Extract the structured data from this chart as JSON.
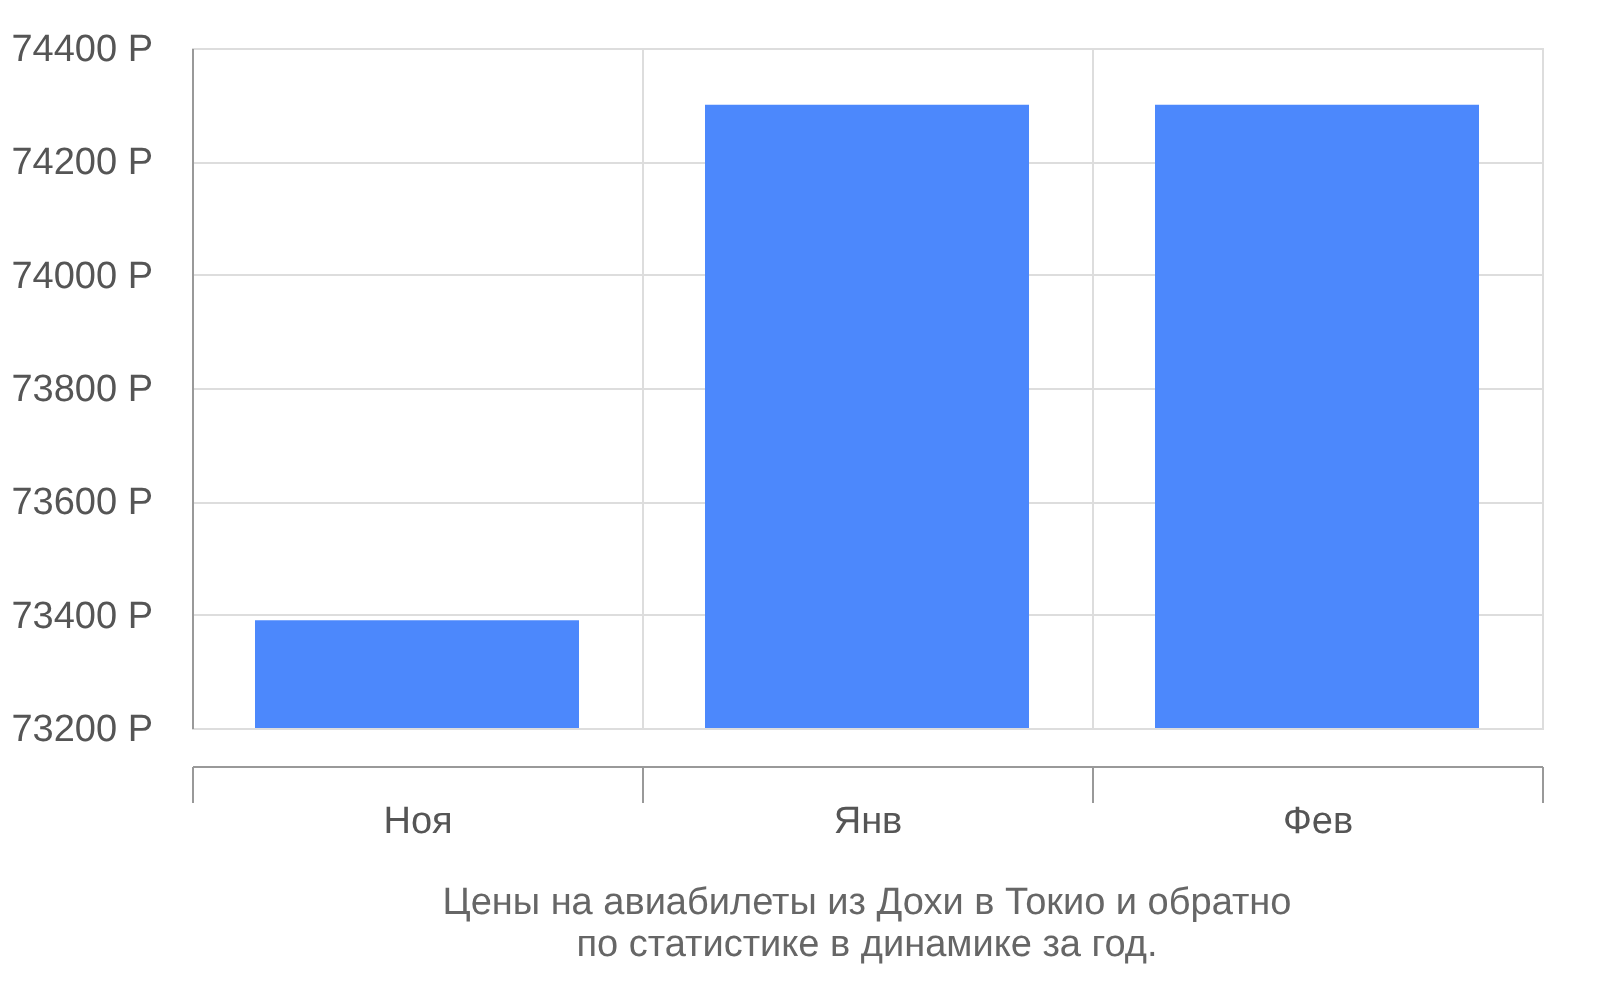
{
  "chart_data": {
    "type": "bar",
    "title": "Цены на авиабилеты из Дохи в Токио и обратно",
    "subtitle": "по статистике в динамике за год.",
    "categories": [
      "Ноя",
      "Янв",
      "Фев"
    ],
    "values": [
      73390,
      74300,
      74300
    ],
    "color": "#4c88fc",
    "ylim": [
      73200,
      74400
    ],
    "yticks": [
      {
        "value": 73200,
        "label": "73200 Р"
      },
      {
        "value": 73400,
        "label": "73400 Р"
      },
      {
        "value": 73600,
        "label": "73600 Р"
      },
      {
        "value": 73800,
        "label": "73800 Р"
      },
      {
        "value": 74000,
        "label": "74000 Р"
      },
      {
        "value": 74200,
        "label": "74200 Р"
      },
      {
        "value": 74400,
        "label": "74400 Р"
      }
    ],
    "grid": true
  }
}
